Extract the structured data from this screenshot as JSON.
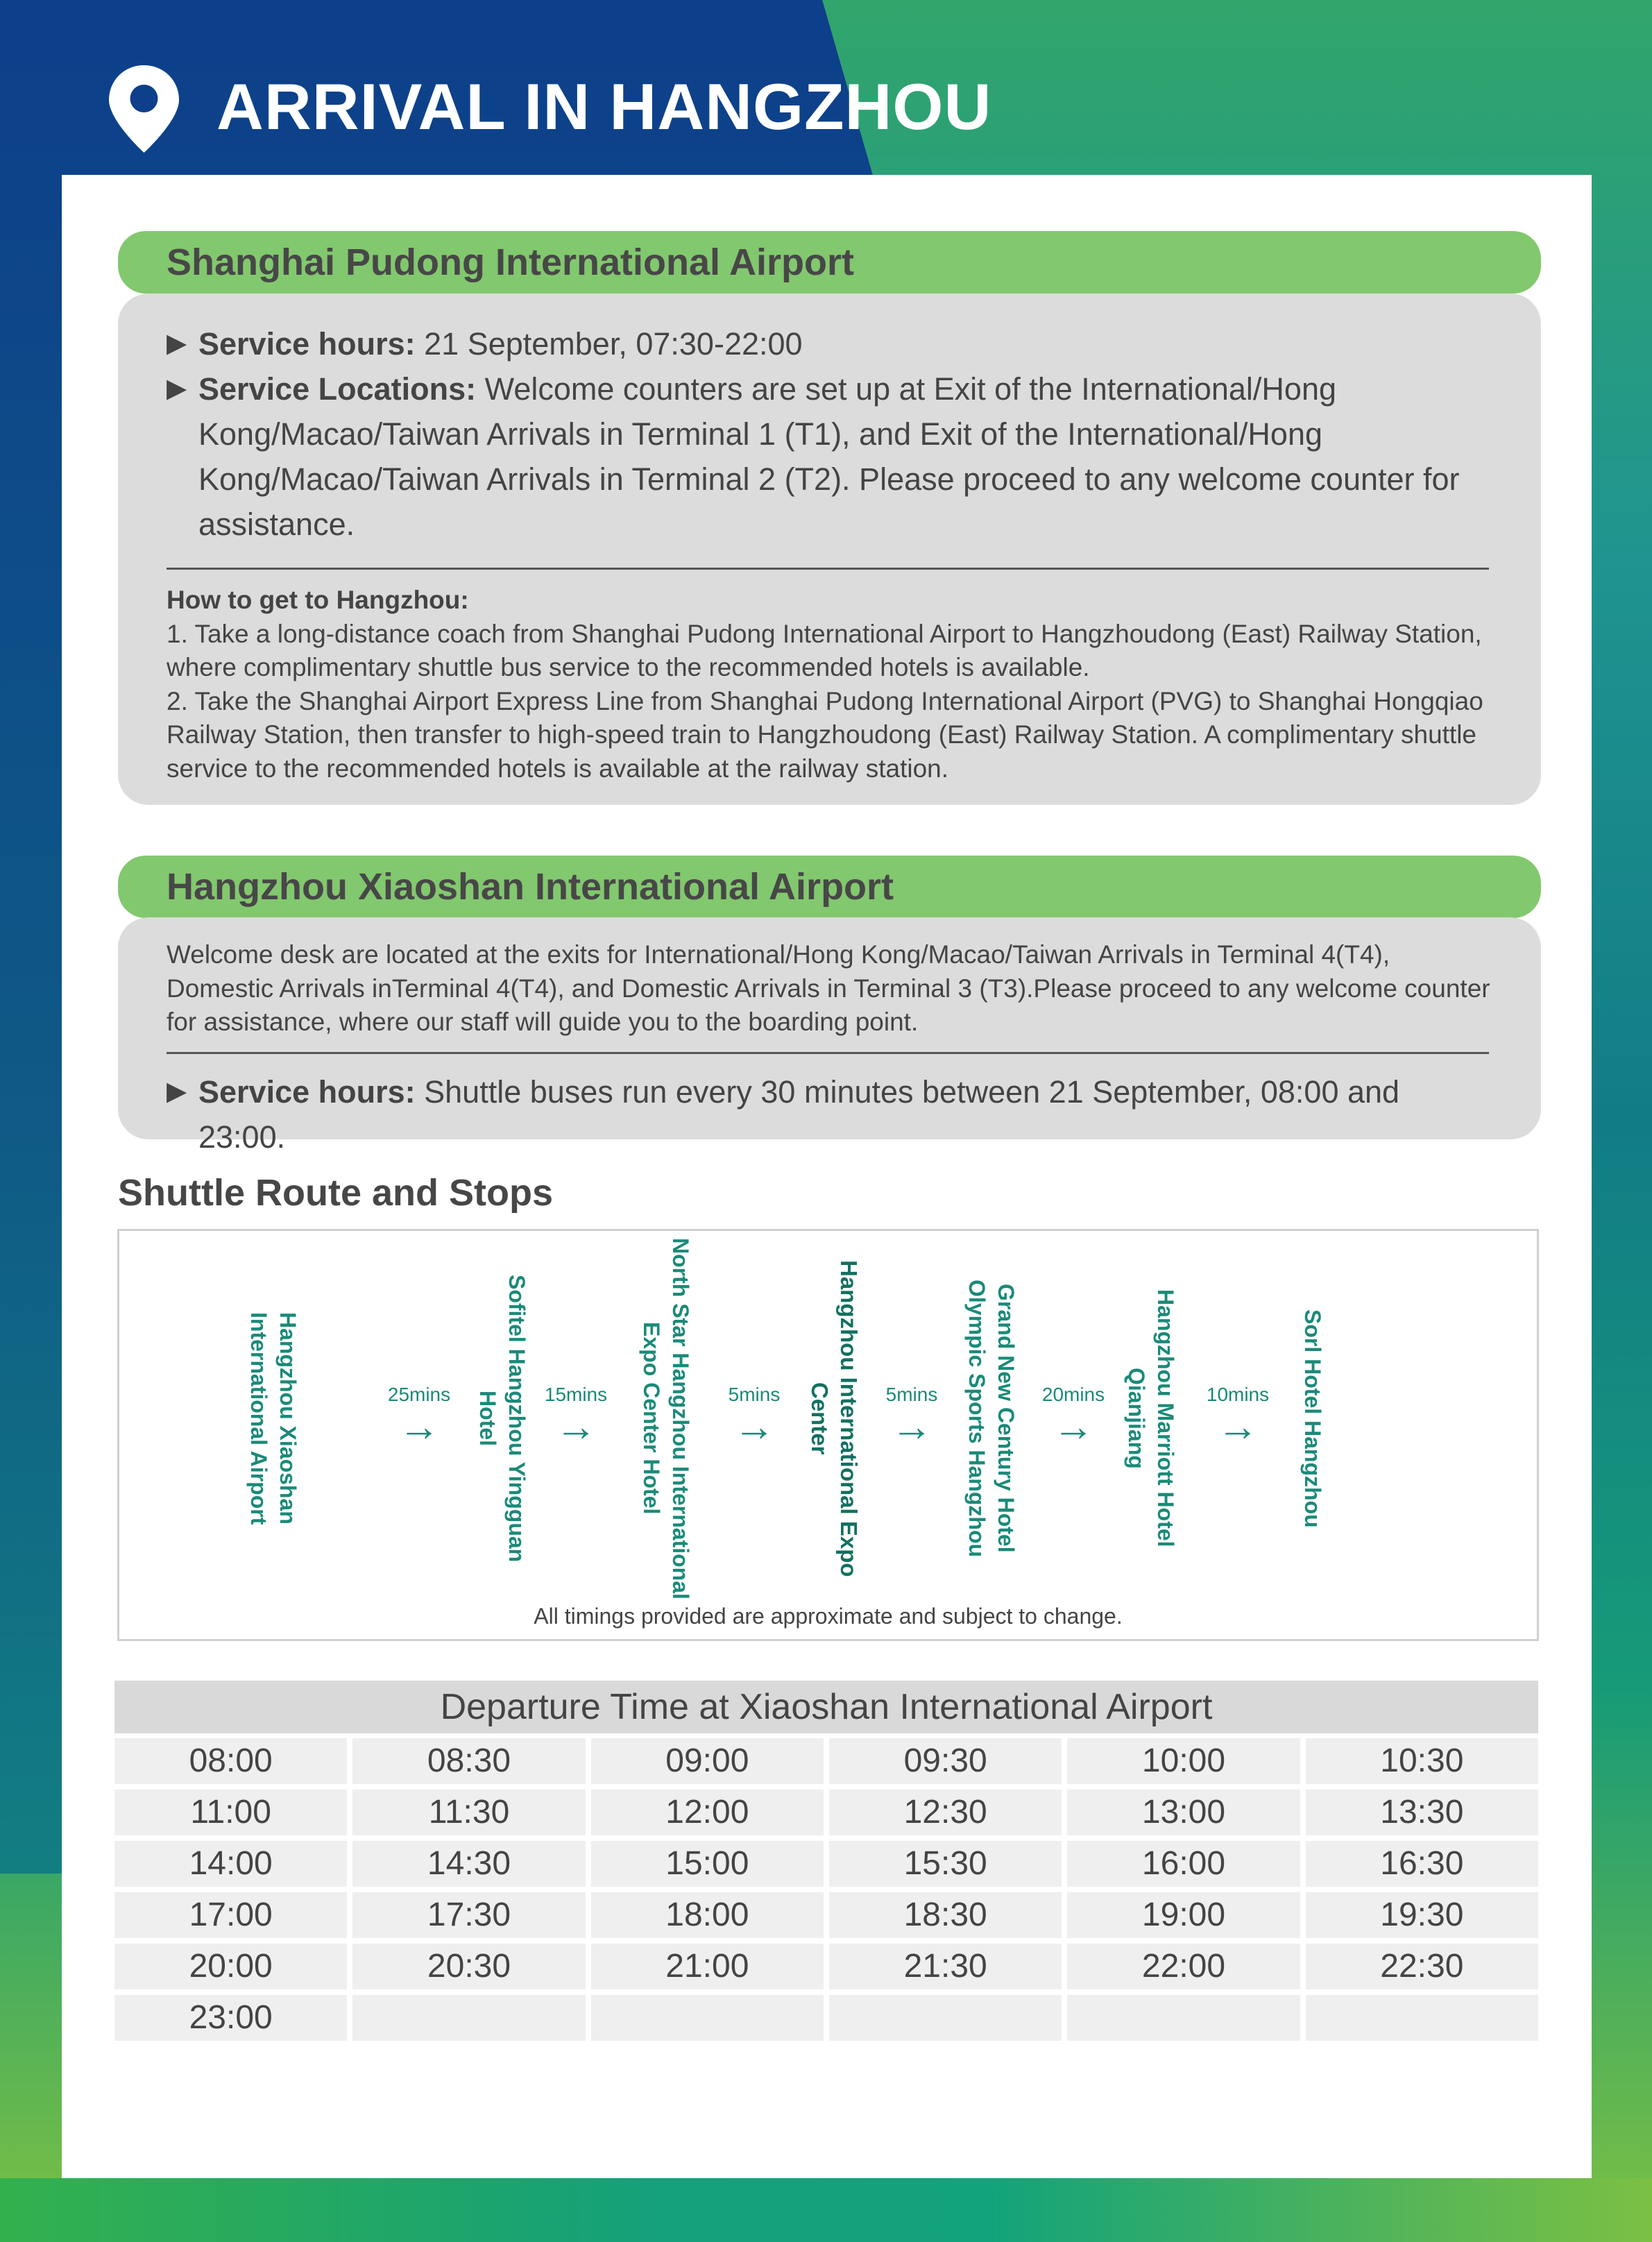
{
  "title": "ARRIVAL IN HANGZHOU",
  "colors": {
    "accent_green": "#82c86e",
    "route_text": "#1a8a78",
    "panel_gray": "#dcdcdc",
    "blue_bg": "#0d3f8a"
  },
  "pudong": {
    "heading": "Shanghai Pudong International Airport",
    "hours_label": "Service hours:",
    "hours_text": " 21 September, 07:30-22:00",
    "locations_label": "Service Locations:",
    "locations_text": " Welcome counters are set up at Exit of the International/Hong Kong/Macao/Taiwan Arrivals in Terminal 1 (T1), and Exit of the International/Hong Kong/Macao/Taiwan Arrivals in Terminal 2 (T2). Please proceed to any welcome counter for assistance.",
    "howto_title": "How to get to Hangzhou:",
    "howto_1": "1. Take a long-distance coach from Shanghai Pudong International Airport to Hangzhoudong (East) Railway Station, where complimentary shuttle bus service to the recommended hotels is available.",
    "howto_2": "2. Take the Shanghai Airport Express Line from Shanghai Pudong International Airport (PVG) to Shanghai Hongqiao Railway Station, then transfer to high-speed train to Hangzhoudong (East) Railway Station. A complimentary shuttle service to the recommended hotels is available at the railway station."
  },
  "xiaoshan": {
    "heading": "Hangzhou Xiaoshan International Airport",
    "desc": "Welcome desk are located at the exits for International/Hong Kong/Macao/Taiwan Arrivals in Terminal 4(T4), Domestic Arrivals inTerminal 4(T4), and Domestic Arrivals in Terminal 3 (T3).Please proceed to any welcome counter for assistance, where our staff will guide you to the boarding point.",
    "hours_label": "Service hours:",
    "hours_text": " Shuttle buses run every 30 minutes between 21 September, 08:00 and 23:00."
  },
  "route": {
    "title": "Shuttle Route and Stops",
    "stops": [
      "Hangzhou Xiaoshan International Airport",
      "Sofitel Hangzhou Yingguan Hotel",
      "North Star Hangzhou International Expo Center Hotel",
      "Hangzhou International Expo Center",
      "Grand New Century Hotel Olympic Sports Hangzhou",
      "Hangzhou Marriott Hotel Qianjiang",
      "Sorl Hotel Hangzhou"
    ],
    "segments": [
      "25mins",
      "15mins",
      "5mins",
      "5mins",
      "20mins",
      "10mins"
    ],
    "arrow_icon": "→",
    "note": "All timings provided are approximate and subject to change."
  },
  "departures": {
    "title": "Departure Time at Xiaoshan International Airport",
    "times": [
      "08:00",
      "08:30",
      "09:00",
      "09:30",
      "10:00",
      "10:30",
      "11:00",
      "11:30",
      "12:00",
      "12:30",
      "13:00",
      "13:30",
      "14:00",
      "14:30",
      "15:00",
      "15:30",
      "16:00",
      "16:30",
      "17:00",
      "17:30",
      "18:00",
      "18:30",
      "19:00",
      "19:30",
      "20:00",
      "20:30",
      "21:00",
      "21:30",
      "22:00",
      "22:30",
      "23:00",
      "",
      "",
      "",
      "",
      ""
    ]
  }
}
